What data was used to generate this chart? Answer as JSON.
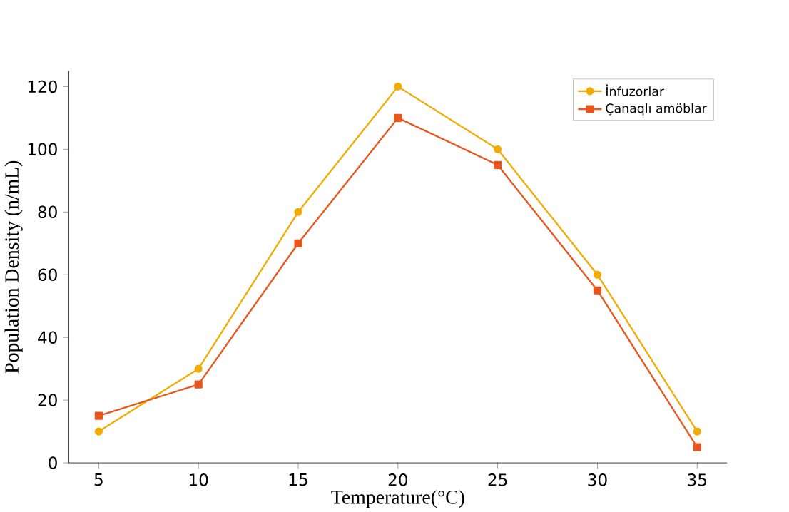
{
  "chart_data": {
    "type": "line",
    "xlabel": "Temperature(°C)",
    "ylabel": "Population Density  (n/mL)",
    "x": [
      5,
      10,
      15,
      20,
      25,
      30,
      35
    ],
    "series": [
      {
        "name": "İnfuzorlar",
        "color": "#f2ac00",
        "marker": "circle",
        "values": [
          10,
          30,
          80,
          120,
          100,
          60,
          10
        ]
      },
      {
        "name": "Çanaqlı amöblar",
        "color": "#e8561c",
        "marker": "square",
        "values": [
          15,
          25,
          70,
          110,
          95,
          55,
          5
        ]
      }
    ],
    "xlim": [
      3.5,
      36.5
    ],
    "ylim": [
      0,
      125
    ],
    "xticks": [
      5,
      10,
      15,
      20,
      25,
      30,
      35
    ],
    "yticks": [
      0,
      20,
      40,
      60,
      80,
      100,
      120
    ],
    "grid": false,
    "legend": "top right"
  }
}
